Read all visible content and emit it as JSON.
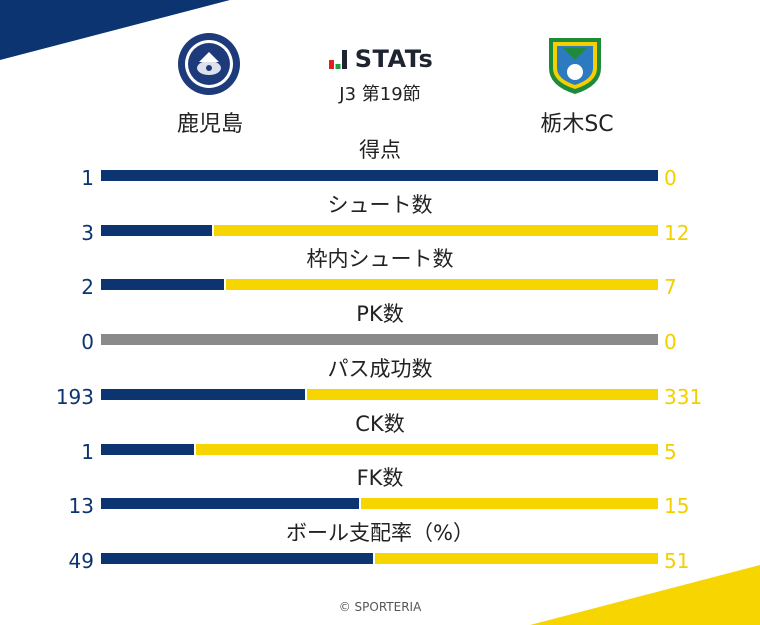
{
  "brand": {
    "title": "STATs",
    "matchday": "J3 第19節"
  },
  "teams": {
    "home": "鹿児島",
    "away": "栃木SC"
  },
  "colors": {
    "home": "#0c3470",
    "away": "#f7d500",
    "neutral": "#8a8a8a"
  },
  "stats": [
    {
      "label": "得点",
      "home": "1",
      "away": "0",
      "home_share": 1.0
    },
    {
      "label": "シュート数",
      "home": "3",
      "away": "12",
      "home_share": 0.2
    },
    {
      "label": "枠内シュート数",
      "home": "2",
      "away": "7",
      "home_share": 0.222
    },
    {
      "label": "PK数",
      "home": "0",
      "away": "0",
      "home_share": null
    },
    {
      "label": "パス成功数",
      "home": "193",
      "away": "331",
      "home_share": 0.368
    },
    {
      "label": "CK数",
      "home": "1",
      "away": "5",
      "home_share": 0.167
    },
    {
      "label": "FK数",
      "home": "13",
      "away": "15",
      "home_share": 0.464
    },
    {
      "label": "ボール支配率（%）",
      "home": "49",
      "away": "51",
      "home_share": 0.49
    }
  ],
  "footer": "© SPORTERIA"
}
